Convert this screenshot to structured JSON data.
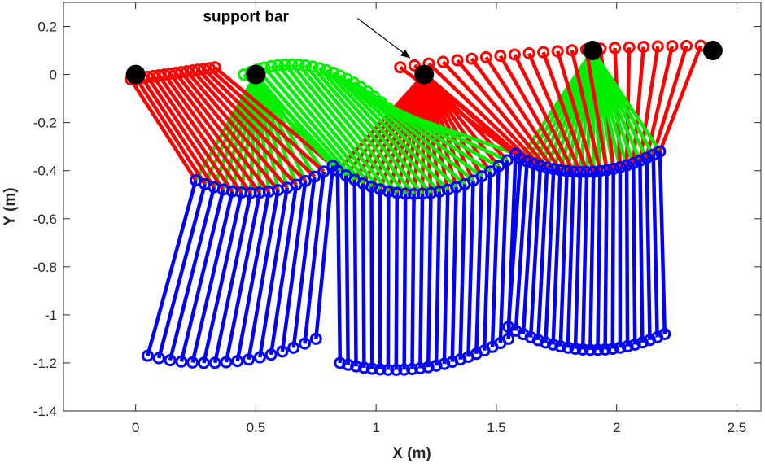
{
  "chart_data": {
    "type": "line",
    "title": "",
    "xlabel": "X (m)",
    "ylabel": "Y (m)",
    "xlim": [
      -0.3,
      2.6
    ],
    "ylim": [
      -1.4,
      0.3
    ],
    "xticks": [
      0,
      0.5,
      1,
      1.5,
      2,
      2.5
    ],
    "xtick_labels": [
      "0",
      "0.5",
      "1",
      "1.5",
      "2",
      "2.5"
    ],
    "yticks": [
      0.2,
      0,
      -0.2,
      -0.4,
      -0.6,
      -0.8,
      -1,
      -1.2,
      -1.4
    ],
    "ytick_labels": [
      "0.2",
      "0",
      "-0.2",
      "-0.4",
      "-0.6",
      "-0.8",
      "-1",
      "-1.2",
      "-1.4"
    ],
    "grid": false,
    "colors": {
      "red": "#ff0000",
      "green": "#00ee00",
      "blue": "#0000ff",
      "support": "#000000"
    },
    "support_points": [
      [
        0,
        0
      ],
      [
        0.5,
        0
      ],
      [
        1.2,
        0
      ],
      [
        1.9,
        0.1
      ],
      [
        2.4,
        0.1
      ]
    ],
    "annotation": {
      "text": "support bar",
      "text_at": [
        0.28,
        0.22
      ],
      "arrow_to": [
        1.14,
        0.07
      ]
    },
    "strides": [
      {
        "n": 16,
        "pivot": [
          0.5,
          0
        ],
        "pivot_color": "green",
        "top_color": "red",
        "top": {
          "start": [
            -0.02,
            -0.02
          ],
          "end": [
            0.33,
            0.03
          ],
          "sag": 0
        },
        "knee": {
          "start": [
            0.25,
            -0.44
          ],
          "end": [
            0.82,
            -0.38
          ],
          "sag": -0.08
        },
        "foot": {
          "start": [
            0.05,
            -1.17
          ],
          "end": [
            0.75,
            -1.1
          ],
          "sag": -0.06
        }
      },
      {
        "n": 22,
        "pivot": [
          1.2,
          0
        ],
        "pivot_color": "red",
        "top_color": "green",
        "top": {
          "start": [
            0.45,
            0.0
          ],
          "end": [
            1.05,
            -0.14
          ],
          "sag": 0.1
        },
        "knee": {
          "start": [
            0.84,
            -0.4
          ],
          "end": [
            1.58,
            -0.33
          ],
          "sag": -0.13
        },
        "foot": {
          "start": [
            0.85,
            -1.2
          ],
          "end": [
            1.55,
            -1.1
          ],
          "sag": -0.07
        }
      },
      {
        "n": 22,
        "pivot": [
          1.9,
          0.1
        ],
        "pivot_color": "green",
        "top_color": "red",
        "top": {
          "start": [
            1.1,
            0.03
          ],
          "end": [
            2.35,
            0.12
          ],
          "sag": 0.02
        },
        "knee": {
          "start": [
            1.6,
            -0.35
          ],
          "end": [
            2.18,
            -0.32
          ],
          "sag": -0.07
        },
        "foot": {
          "start": [
            1.55,
            -1.05
          ],
          "end": [
            2.2,
            -1.08
          ],
          "sag": -0.08
        }
      }
    ]
  }
}
